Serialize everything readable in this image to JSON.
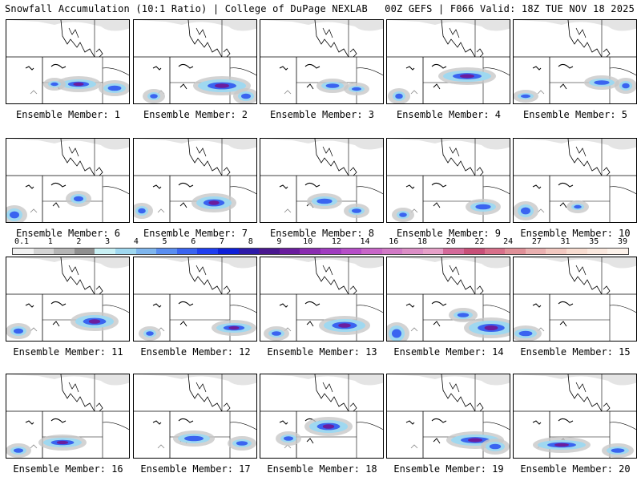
{
  "header": {
    "left": "Snowfall Accumulation (10:1 Ratio) | College of DuPage NEXLAB",
    "right": "00Z GEFS | F066 Valid: 18Z TUE NOV 18 2025"
  },
  "colorbar": {
    "labels": [
      "0.1",
      "1",
      "2",
      "3",
      "4",
      "5",
      "6",
      "7",
      "8",
      "9",
      "10",
      "12",
      "14",
      "16",
      "18",
      "20",
      "22",
      "24",
      "27",
      "31",
      "35",
      "39"
    ],
    "colors": [
      "#f2f2f2",
      "#d4d4d4",
      "#b5b5b5",
      "#8f8f8f",
      "#c8f0f4",
      "#9fd8f0",
      "#7fb6ee",
      "#5a8ef0",
      "#3a64f0",
      "#1f3ef0",
      "#0e1fd8",
      "#2d1aa8",
      "#4a1890",
      "#6a1d9e",
      "#8a2cb0",
      "#a03cc0",
      "#b64ec8",
      "#c866c8",
      "#d27ac6",
      "#dc8ec6",
      "#e6a0c8",
      "#d46a9a",
      "#c85078",
      "#d8708a",
      "#e09098",
      "#eab0b0",
      "#f2c8c0",
      "#f8dcd0",
      "#fbe8de",
      "#fdf2ea"
    ]
  },
  "members": [
    {
      "label": "Ensemble Member: 1"
    },
    {
      "label": "Ensemble Member: 2"
    },
    {
      "label": "Ensemble Member: 3"
    },
    {
      "label": "Ensemble Member: 4"
    },
    {
      "label": "Ensemble Member: 5"
    },
    {
      "label": "Ensemble Member: 6"
    },
    {
      "label": "Ensemble Member: 7"
    },
    {
      "label": "Ensemble Member: 8"
    },
    {
      "label": "Ensemble Member: 9"
    },
    {
      "label": "Ensemble Member: 10"
    },
    {
      "label": "Ensemble Member: 11"
    },
    {
      "label": "Ensemble Member: 12"
    },
    {
      "label": "Ensemble Member: 13"
    },
    {
      "label": "Ensemble Member: 14"
    },
    {
      "label": "Ensemble Member: 15"
    },
    {
      "label": "Ensemble Member: 16"
    },
    {
      "label": "Ensemble Member: 17"
    },
    {
      "label": "Ensemble Member: 18"
    },
    {
      "label": "Ensemble Member: 19"
    },
    {
      "label": "Ensemble Member: 20"
    }
  ]
}
